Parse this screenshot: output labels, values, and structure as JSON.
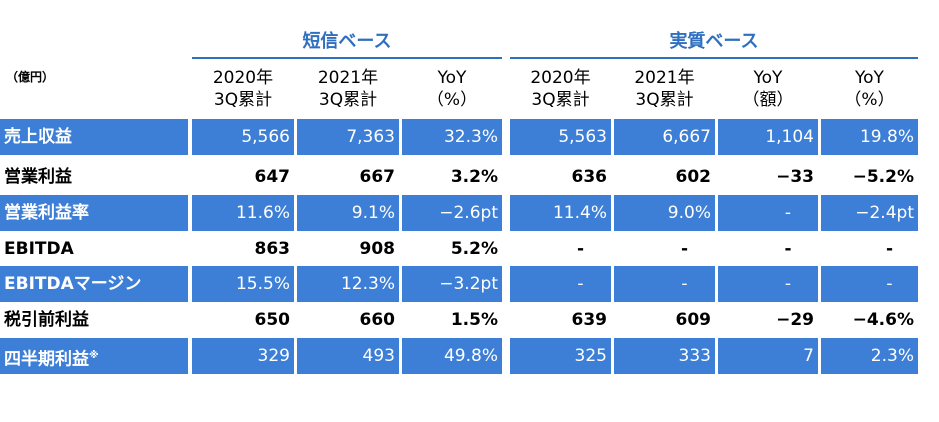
{
  "unit_label": "（億円）",
  "sections": {
    "tanshin": "短信ベース",
    "jisshitsu": "実質ベース"
  },
  "columns": [
    {
      "line1": "2020年",
      "line2": "3Q累計"
    },
    {
      "line1": "2021年",
      "line2": "3Q累計"
    },
    {
      "line1": "YoY",
      "line2": "（%）"
    },
    {
      "line1": "2020年",
      "line2": "3Q累計"
    },
    {
      "line1": "2021年",
      "line2": "3Q累計"
    },
    {
      "line1": "YoY",
      "line2": "（額）"
    },
    {
      "line1": "YoY",
      "line2": "（%）"
    }
  ],
  "rows": [
    {
      "label": "売上収益",
      "footnote": "",
      "style": "blue",
      "values": [
        "5,566",
        "7,363",
        "32.3%",
        "5,563",
        "6,667",
        "1,104",
        "19.8%"
      ]
    },
    {
      "label": "営業利益",
      "footnote": "",
      "style": "white",
      "values": [
        "647",
        "667",
        "3.2%",
        "636",
        "602",
        "−33",
        "−5.2%"
      ]
    },
    {
      "label": "営業利益率",
      "footnote": "",
      "style": "blue",
      "values": [
        "11.6%",
        "9.1%",
        "−2.6pt",
        "11.4%",
        "9.0%",
        "-",
        "−2.4pt"
      ]
    },
    {
      "label": "EBITDA",
      "footnote": "",
      "style": "white",
      "values": [
        "863",
        "908",
        "5.2%",
        "-",
        "-",
        "-",
        "-"
      ]
    },
    {
      "label": "EBITDAマージン",
      "footnote": "",
      "style": "blue",
      "values": [
        "15.5%",
        "12.3%",
        "−3.2pt",
        "-",
        "-",
        "-",
        "-"
      ]
    },
    {
      "label": "税引前利益",
      "footnote": "",
      "style": "white",
      "values": [
        "650",
        "660",
        "1.5%",
        "639",
        "609",
        "−29",
        "−4.6%"
      ]
    },
    {
      "label": "四半期利益",
      "footnote": "※",
      "style": "blue",
      "values": [
        "329",
        "493",
        "49.8%",
        "325",
        "333",
        "7",
        "2.3%"
      ]
    }
  ]
}
